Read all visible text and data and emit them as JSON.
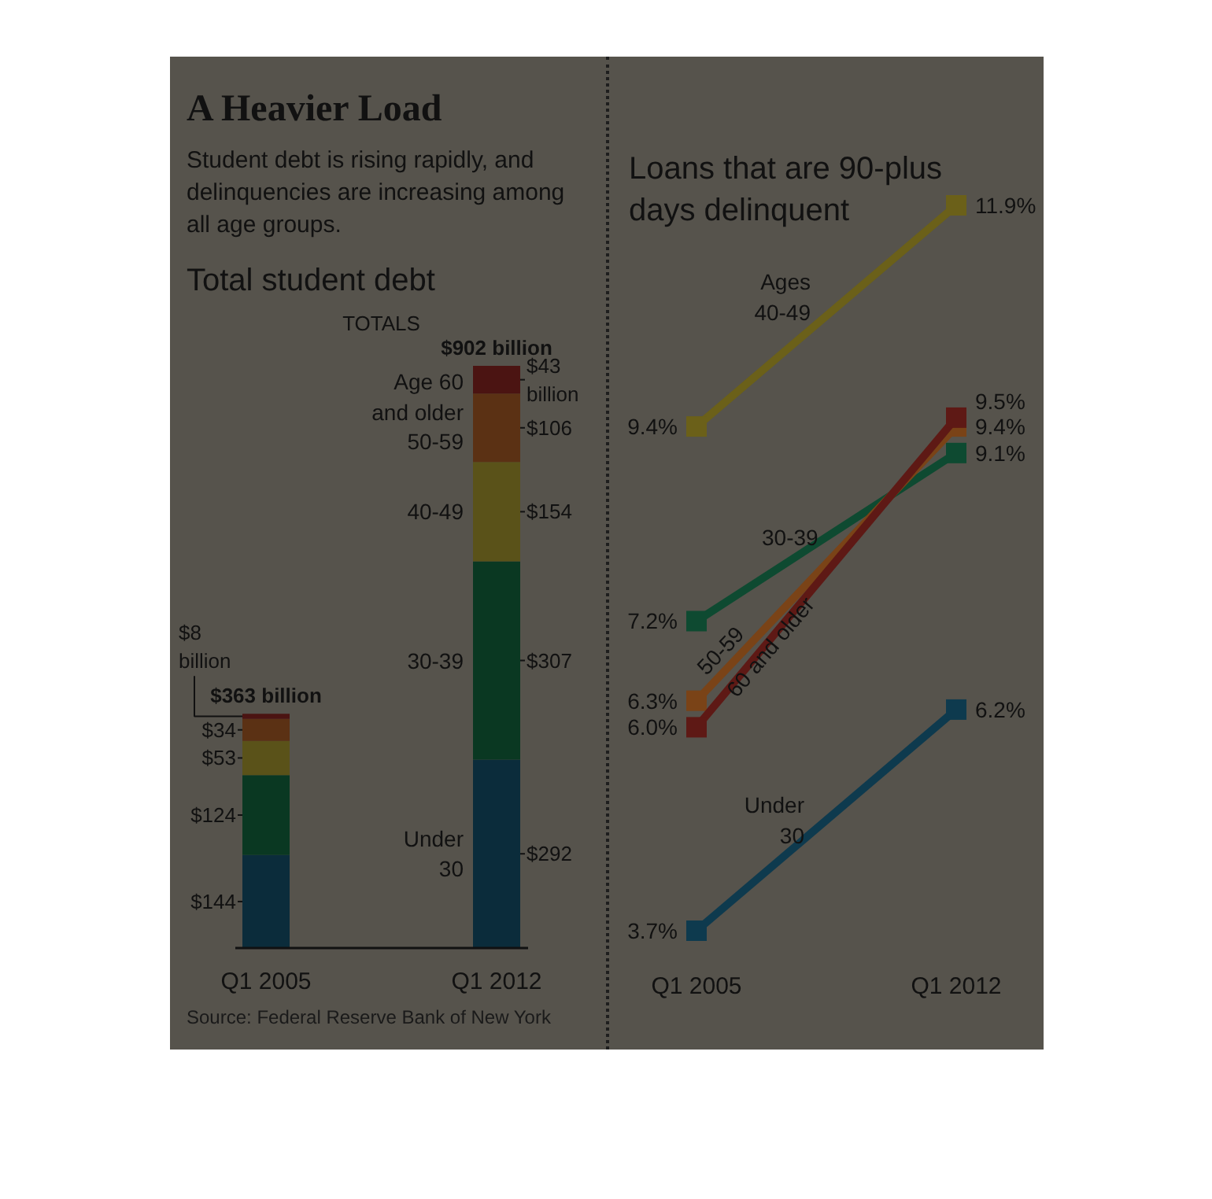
{
  "chart_data": [
    {
      "type": "other",
      "title": "A Heavier Load",
      "subtitle": "Student debt is rising rapidly, and delinquencies are increasing among all age groups."
    },
    {
      "type": "bar",
      "stacked": true,
      "title": "Total student debt",
      "categories": [
        "Q1 2005",
        "Q1 2012"
      ],
      "series": [
        {
          "name": "Under 30",
          "color": "#0b2c3b",
          "values": [
            144,
            292
          ],
          "value_labels": [
            "$144",
            "$292"
          ]
        },
        {
          "name": "30-39",
          "color": "#0a3822",
          "values": [
            124,
            307
          ],
          "value_labels": [
            "$124",
            "$307"
          ]
        },
        {
          "name": "40-49",
          "color": "#5a5219",
          "values": [
            53,
            154
          ],
          "value_labels": [
            "$53",
            "$154"
          ]
        },
        {
          "name": "50-59",
          "color": "#5b3114",
          "values": [
            34,
            106
          ],
          "value_labels": [
            "$34",
            "$106"
          ]
        },
        {
          "name": "Age 60 and older",
          "color": "#4b1412",
          "values": [
            8,
            43
          ],
          "value_labels": [
            "$8 billion",
            "$43 billion"
          ]
        }
      ],
      "totals": [
        "$363 billion",
        "$902 billion"
      ],
      "tick_labels": "x",
      "annotations": [
        "TOTALS",
        "Source: Federal Reserve Bank of New York"
      ]
    },
    {
      "type": "line",
      "title": "Loans that are 90-plus days delinquent",
      "categories": [
        "Q1 2005",
        "Q1 2012"
      ],
      "series": [
        {
          "name": "Under 30",
          "color": "#0e3a4e",
          "values": [
            3.7,
            6.2
          ],
          "value_labels": [
            "3.7%",
            "6.2%"
          ]
        },
        {
          "name": "30-39",
          "color": "#0e4a31",
          "values": [
            7.2,
            9.1
          ],
          "value_labels": [
            "7.2%",
            "9.1%"
          ]
        },
        {
          "name": "Ages 40-49",
          "color": "#6b6019",
          "values": [
            9.4,
            11.9
          ],
          "value_labels": [
            "9.4%",
            "11.9%"
          ]
        },
        {
          "name": "50-59",
          "color": "#7a4317",
          "values": [
            6.3,
            9.4
          ],
          "value_labels": [
            "6.3%",
            "9.4%"
          ]
        },
        {
          "name": "60 and older",
          "color": "#5e1915",
          "values": [
            6.0,
            9.5
          ],
          "value_labels": [
            "6.0%",
            "9.5%"
          ]
        }
      ],
      "marker": "square",
      "tick_labels": "x"
    }
  ]
}
